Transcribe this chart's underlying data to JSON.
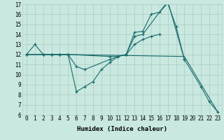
{
  "xlabel": "Humidex (Indice chaleur)",
  "bg_color": "#c8e8e0",
  "grid_color": "#b0d0c8",
  "line_color": "#1a6b6b",
  "xlim": [
    -0.5,
    23.5
  ],
  "ylim": [
    6,
    17
  ],
  "yticks": [
    6,
    7,
    8,
    9,
    10,
    11,
    12,
    13,
    14,
    15,
    16,
    17
  ],
  "xticks": [
    0,
    1,
    2,
    3,
    4,
    5,
    6,
    7,
    8,
    9,
    10,
    11,
    12,
    13,
    14,
    15,
    16,
    17,
    18,
    19,
    20,
    21,
    22,
    23
  ],
  "line1_x": [
    0,
    1,
    2,
    3,
    4,
    5,
    6,
    7,
    8,
    9,
    10,
    11,
    12,
    13,
    14,
    15,
    16,
    17,
    18,
    19
  ],
  "line1_y": [
    12,
    13,
    12,
    12,
    12,
    12,
    8.3,
    8.8,
    9.3,
    10.5,
    11.2,
    11.8,
    12.0,
    14.2,
    14.3,
    16.0,
    16.2,
    17.1,
    14.8,
    11.5
  ],
  "line2_x": [
    0,
    2,
    3,
    4,
    5,
    6,
    7,
    10,
    11,
    12,
    13,
    14,
    17,
    19,
    21,
    22,
    23
  ],
  "line2_y": [
    12,
    12,
    12,
    12,
    12,
    10.8,
    10.5,
    11.5,
    11.8,
    12.0,
    13.8,
    14.0,
    17.3,
    11.5,
    8.8,
    7.3,
    6.3
  ],
  "line3_x": [
    0,
    2,
    3,
    4,
    5,
    10,
    11,
    12,
    13,
    14,
    15,
    16
  ],
  "line3_y": [
    12,
    12,
    12,
    12,
    12,
    11.8,
    11.8,
    12.0,
    13.0,
    13.5,
    13.8,
    14.0
  ],
  "line4_x": [
    0,
    5,
    19,
    23
  ],
  "line4_y": [
    12,
    12,
    11.8,
    6.3
  ]
}
